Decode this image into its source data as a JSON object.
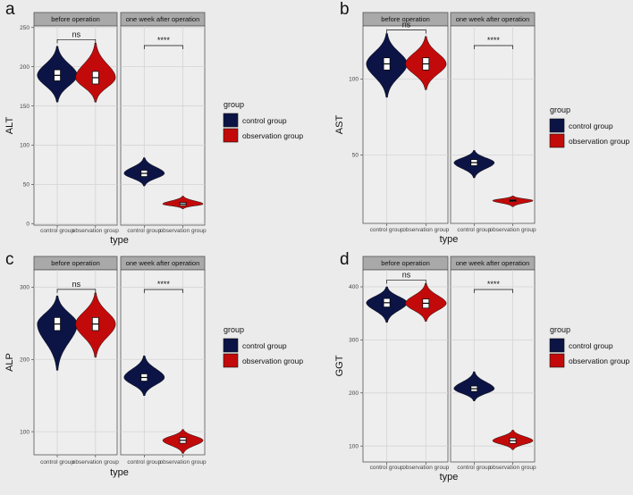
{
  "colors": {
    "control": "#0b1445",
    "observation": "#c20a0a",
    "panel_bg": "#eeeeee",
    "strip_bg": "#a9a9a9",
    "grid": "#d4d4d4"
  },
  "legend": {
    "title": "group",
    "items": [
      "control group",
      "observation group"
    ]
  },
  "chart_data": [
    {
      "type": "violin",
      "panel": "a",
      "ylabel": "ALT",
      "xlabel": "type",
      "ylim": [
        -2,
        252
      ],
      "yticks": [
        0,
        50,
        100,
        150,
        200,
        250
      ],
      "categories": [
        "control group",
        "observation group"
      ],
      "facets": [
        {
          "strip": "before operation",
          "significance": "ns",
          "series": [
            {
              "name": "control group",
              "median": 189,
              "q1": 182,
              "q3": 196,
              "min": 155,
              "max": 226
            },
            {
              "name": "observation group",
              "median": 186,
              "q1": 178,
              "q3": 194,
              "min": 155,
              "max": 230
            }
          ]
        },
        {
          "strip": "one week after operation",
          "significance": "****",
          "series": [
            {
              "name": "control group",
              "median": 64,
              "q1": 60,
              "q3": 68,
              "min": 48,
              "max": 84
            },
            {
              "name": "observation group",
              "median": 25,
              "q1": 23,
              "q3": 27,
              "min": 19,
              "max": 35
            }
          ]
        }
      ]
    },
    {
      "type": "violin",
      "panel": "b",
      "ylabel": "AST",
      "xlabel": "type",
      "ylim": [
        5,
        135
      ],
      "yticks": [
        50,
        100
      ],
      "categories": [
        "control group",
        "observation group"
      ],
      "facets": [
        {
          "strip": "before operation",
          "significance": "ns",
          "series": [
            {
              "name": "control group",
              "median": 110,
              "q1": 106,
              "q3": 114,
              "min": 88,
              "max": 130
            },
            {
              "name": "observation group",
              "median": 110,
              "q1": 106,
              "q3": 114,
              "min": 93,
              "max": 128
            }
          ]
        },
        {
          "strip": "one week after operation",
          "significance": "****",
          "series": [
            {
              "name": "control group",
              "median": 45,
              "q1": 43,
              "q3": 47,
              "min": 35,
              "max": 53
            },
            {
              "name": "observation group",
              "median": 20,
              "q1": 19.4,
              "q3": 20.6,
              "min": 16,
              "max": 23
            }
          ]
        }
      ]
    },
    {
      "type": "violin",
      "panel": "c",
      "ylabel": "ALP",
      "xlabel": "type",
      "ylim": [
        68,
        324
      ],
      "yticks": [
        100,
        200,
        300
      ],
      "categories": [
        "control group",
        "observation group"
      ],
      "facets": [
        {
          "strip": "before operation",
          "significance": "ns",
          "series": [
            {
              "name": "control group",
              "median": 249,
              "q1": 240,
              "q3": 258,
              "min": 185,
              "max": 288
            },
            {
              "name": "observation group",
              "median": 249,
              "q1": 240,
              "q3": 258,
              "min": 203,
              "max": 292
            }
          ]
        },
        {
          "strip": "one week after operation",
          "significance": "****",
          "series": [
            {
              "name": "control group",
              "median": 175,
              "q1": 170,
              "q3": 180,
              "min": 150,
              "max": 205
            },
            {
              "name": "observation group",
              "median": 88,
              "q1": 84,
              "q3": 92,
              "min": 70,
              "max": 103
            }
          ]
        }
      ]
    },
    {
      "type": "violin",
      "panel": "d",
      "ylabel": "GGT",
      "xlabel": "type",
      "ylim": [
        70,
        432
      ],
      "yticks": [
        100,
        200,
        300,
        400
      ],
      "categories": [
        "control group",
        "observation group"
      ],
      "facets": [
        {
          "strip": "before operation",
          "significance": "ns",
          "series": [
            {
              "name": "control group",
              "median": 370,
              "q1": 362,
              "q3": 378,
              "min": 333,
              "max": 400
            },
            {
              "name": "observation group",
              "median": 369,
              "q1": 360,
              "q3": 377,
              "min": 335,
              "max": 406
            }
          ]
        },
        {
          "strip": "one week after operation",
          "significance": "****",
          "series": [
            {
              "name": "control group",
              "median": 208,
              "q1": 203,
              "q3": 213,
              "min": 185,
              "max": 240
            },
            {
              "name": "observation group",
              "median": 110,
              "q1": 105,
              "q3": 115,
              "min": 93,
              "max": 130
            }
          ]
        }
      ]
    }
  ]
}
